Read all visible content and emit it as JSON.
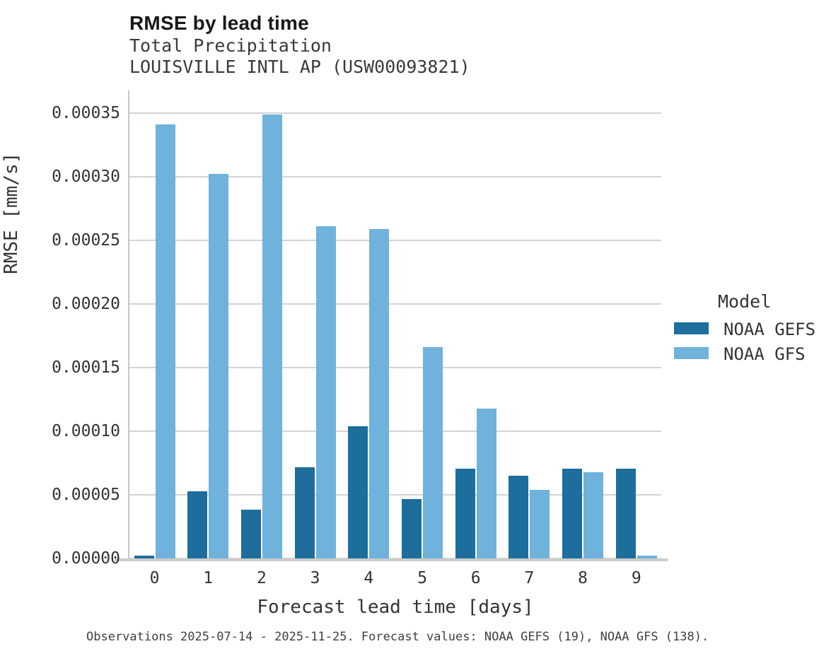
{
  "header": {
    "title": "RMSE by lead time",
    "subtitle1": "Total Precipitation",
    "subtitle2": "LOUISVILLE INTL AP (USW00093821)"
  },
  "chart_data": {
    "type": "bar",
    "title": "RMSE by lead time",
    "subtitle": [
      "Total Precipitation",
      "LOUISVILLE INTL AP (USW00093821)"
    ],
    "categories": [
      "0",
      "1",
      "2",
      "3",
      "4",
      "5",
      "6",
      "7",
      "8",
      "9"
    ],
    "series": [
      {
        "name": "NOAA GEFS",
        "color": "#1d6d9d",
        "values": [
          2e-06,
          5.3e-05,
          3.85e-05,
          7.15e-05,
          0.000104,
          4.65e-05,
          7.05e-05,
          6.5e-05,
          7.05e-05,
          7.05e-05
        ]
      },
      {
        "name": "NOAA GFS",
        "color": "#6fb2dc",
        "values": [
          0.000341,
          0.000302,
          0.000349,
          0.000261,
          0.000259,
          0.000166,
          0.000118,
          5.4e-05,
          6.8e-05,
          2e-06
        ]
      }
    ],
    "xlabel": "Forecast lead time [days]",
    "ylabel": "RMSE [mm/s]",
    "ylim": [
      0,
      0.000368
    ],
    "yticks": [
      0.0,
      5e-05,
      0.0001,
      0.00015,
      0.0002,
      0.00025,
      0.0003,
      0.00035
    ],
    "ytick_labels": [
      "0.00000",
      "0.00005",
      "0.00010",
      "0.00015",
      "0.00020",
      "0.00025",
      "0.00030",
      "0.00035"
    ],
    "legend_title": "Model",
    "legend_position": "right",
    "grid": "horizontal-only",
    "colors": {
      "gridline": "#d4d4d4",
      "axis_line": "#c6c6c6",
      "text": "#333333"
    }
  },
  "footer": {
    "note": "Observations 2025-07-14 - 2025-11-25. Forecast values: NOAA GEFS (19), NOAA GFS (138)."
  }
}
